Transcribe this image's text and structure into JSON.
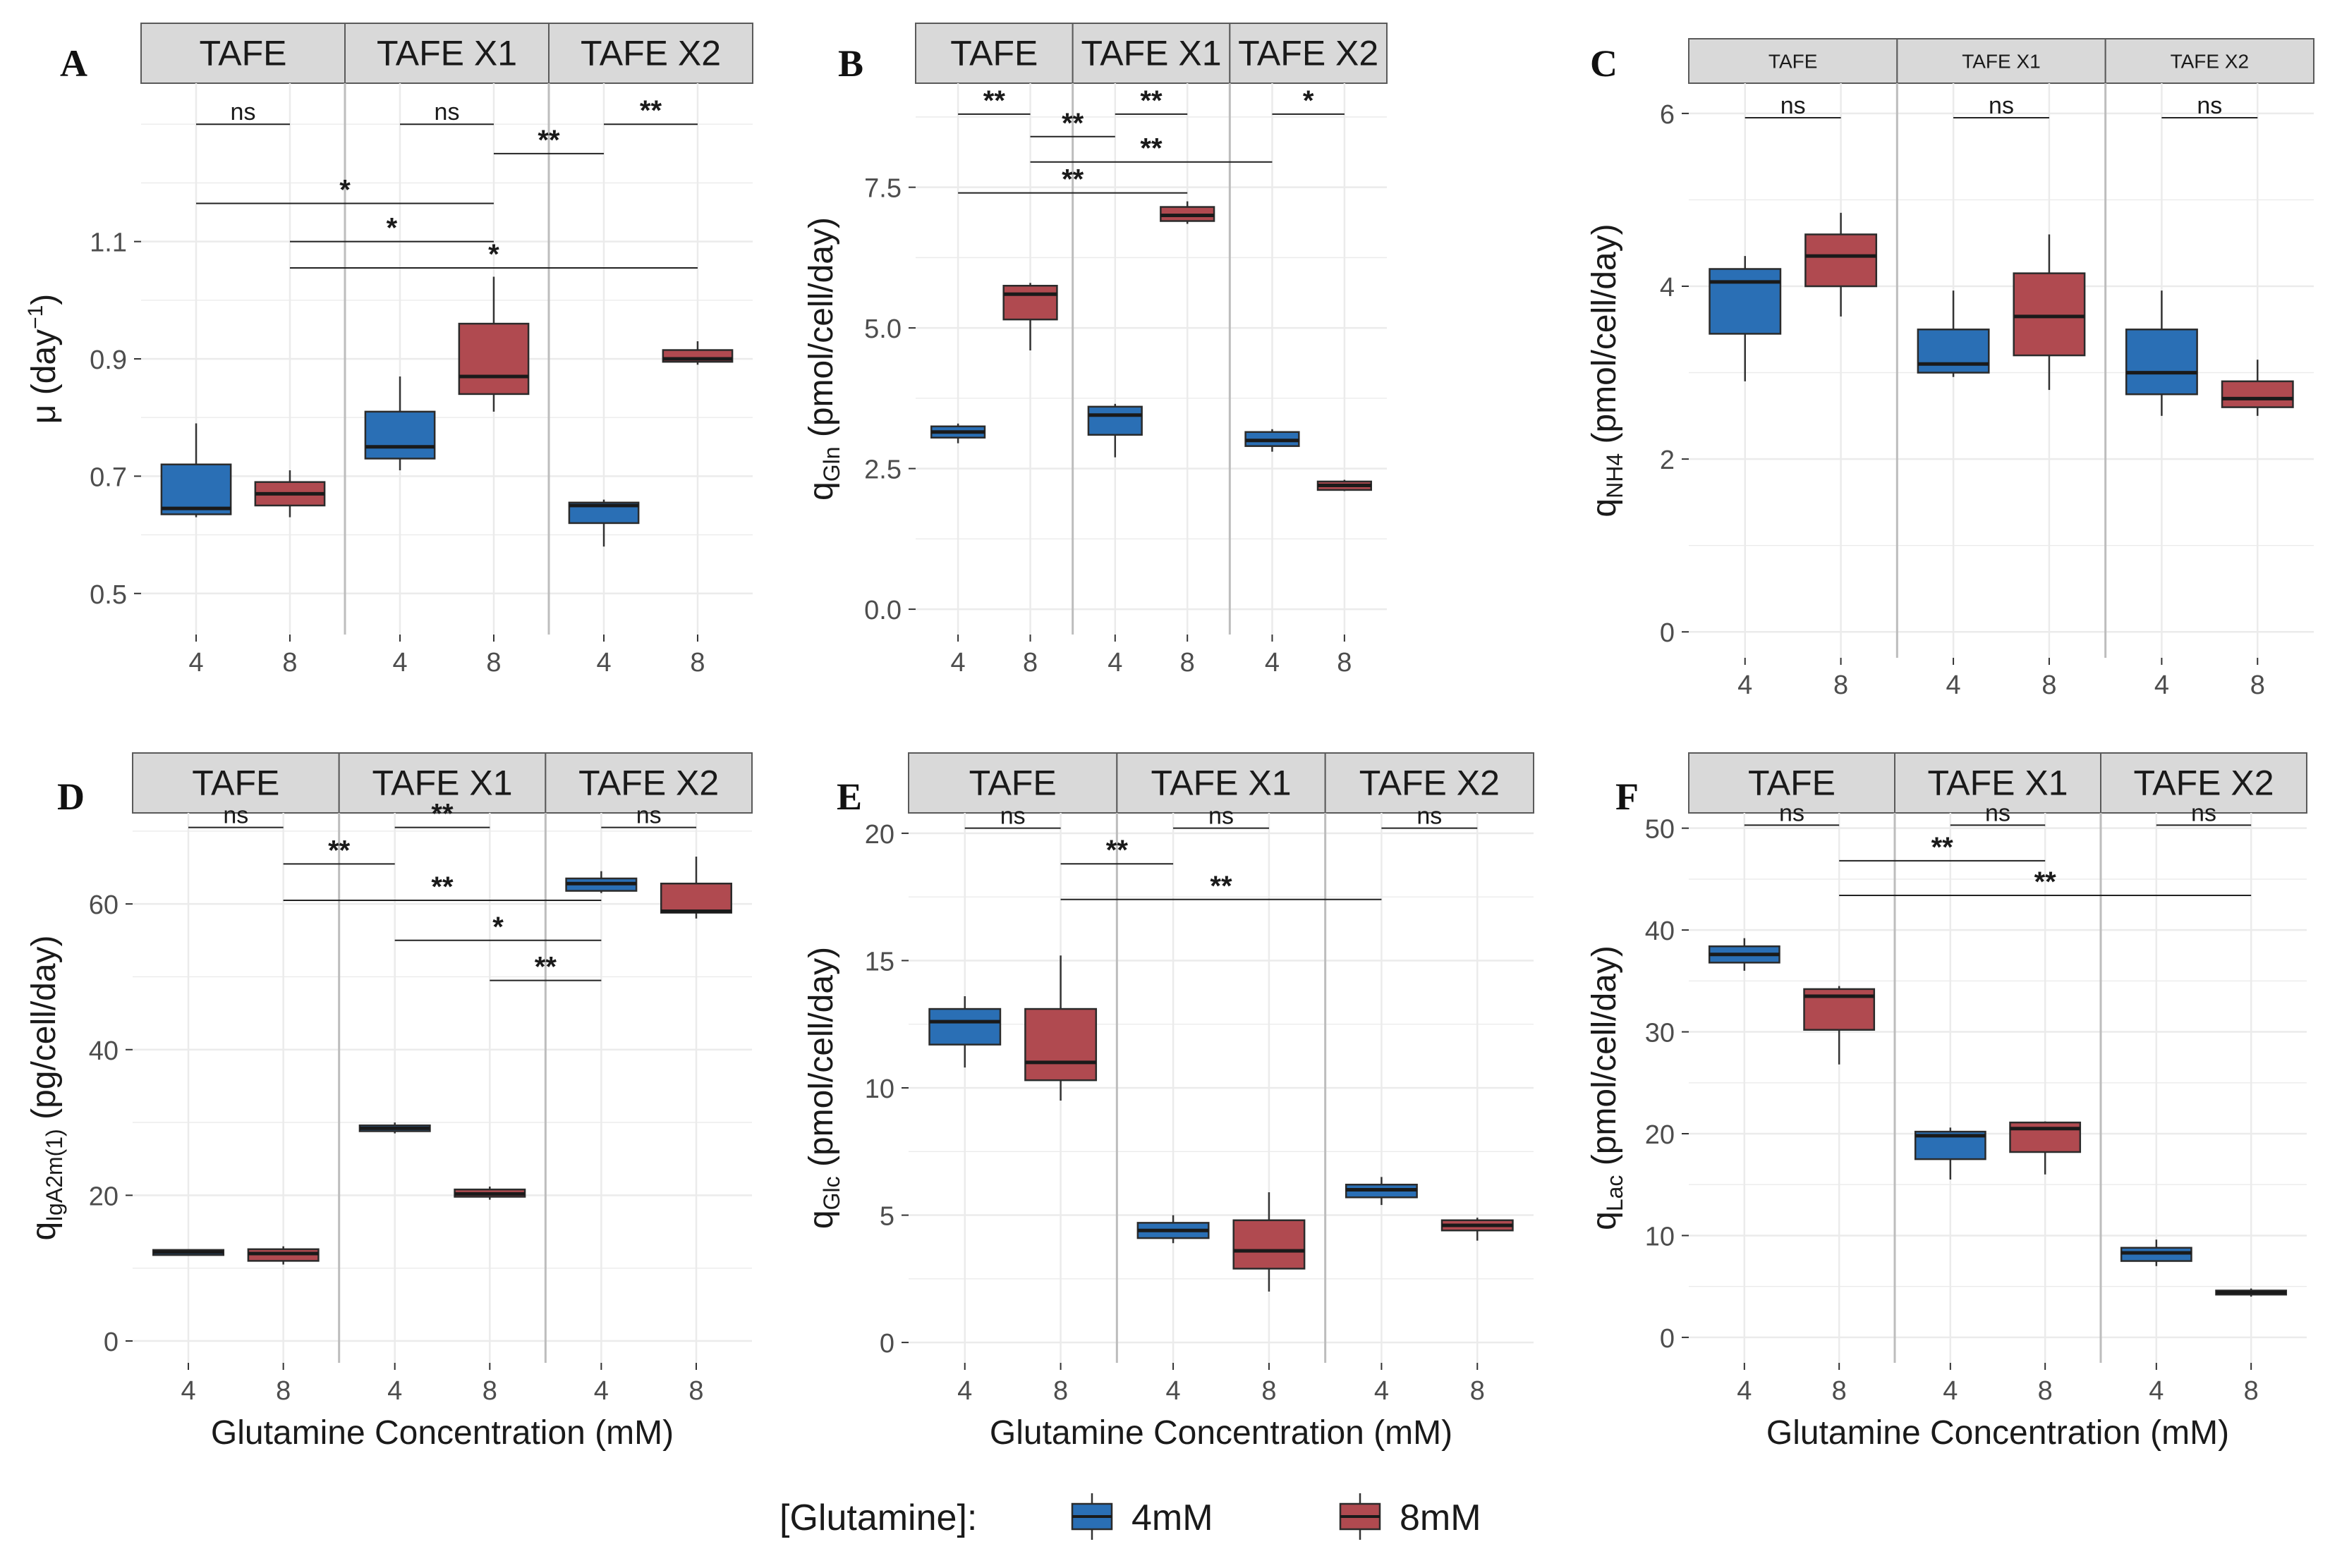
{
  "figure": {
    "colors": {
      "4mM": "#2a6fb5",
      "8mM": "#b04a50",
      "strip_bg": "#d9d9d9",
      "grid": "#ebebeb",
      "panel_divider": "#bdbdbd"
    },
    "legend": {
      "title": "[Glutamine]:",
      "items": [
        {
          "label": "4mM",
          "color": "#2a6fb5"
        },
        {
          "label": "8mM",
          "color": "#b04a50"
        }
      ]
    },
    "xlabel": "Glutamine Concentration (mM)"
  },
  "chart_data": [
    {
      "panel": "A",
      "type": "boxplot",
      "ylabel": {
        "main": "μ (day",
        "sup": "−1",
        "tail": ")"
      },
      "ylim": [
        0.43,
        1.37
      ],
      "yticks": [
        0.5,
        0.7,
        0.9,
        1.1
      ],
      "facets": [
        "TAFE",
        "TAFE X1",
        "TAFE X2"
      ],
      "xticks": [
        "4",
        "8"
      ],
      "boxes": [
        {
          "facet": 0,
          "group": "4mM",
          "min": 0.63,
          "q1": 0.635,
          "median": 0.645,
          "q3": 0.72,
          "max": 0.79
        },
        {
          "facet": 0,
          "group": "8mM",
          "min": 0.63,
          "q1": 0.65,
          "median": 0.67,
          "q3": 0.69,
          "max": 0.71
        },
        {
          "facet": 1,
          "group": "4mM",
          "min": 0.71,
          "q1": 0.73,
          "median": 0.75,
          "q3": 0.81,
          "max": 0.87
        },
        {
          "facet": 1,
          "group": "8mM",
          "min": 0.81,
          "q1": 0.84,
          "median": 0.87,
          "q3": 0.96,
          "max": 1.04
        },
        {
          "facet": 2,
          "group": "4mM",
          "min": 0.58,
          "q1": 0.62,
          "median": 0.65,
          "q3": 0.655,
          "max": 0.66
        },
        {
          "facet": 2,
          "group": "8mM",
          "min": 0.89,
          "q1": 0.895,
          "median": 0.9,
          "q3": 0.915,
          "max": 0.93
        }
      ],
      "brackets": [
        {
          "from": [
            0,
            "4mM"
          ],
          "to": [
            0,
            "8mM"
          ],
          "y": 1.3,
          "label": "ns"
        },
        {
          "from": [
            1,
            "4mM"
          ],
          "to": [
            1,
            "8mM"
          ],
          "y": 1.3,
          "label": "ns"
        },
        {
          "from": [
            1,
            "8mM"
          ],
          "to": [
            2,
            "4mM"
          ],
          "y": 1.25,
          "label": "**"
        },
        {
          "from": [
            2,
            "4mM"
          ],
          "to": [
            2,
            "8mM"
          ],
          "y": 1.3,
          "label": "**"
        },
        {
          "from": [
            0,
            "4mM"
          ],
          "to": [
            1,
            "8mM"
          ],
          "y": 1.165,
          "label": "*"
        },
        {
          "from": [
            0,
            "8mM"
          ],
          "to": [
            1,
            "8mM"
          ],
          "y": 1.1,
          "label": "*"
        },
        {
          "from": [
            0,
            "8mM"
          ],
          "to": [
            2,
            "8mM"
          ],
          "y": 1.055,
          "label": "*"
        }
      ]
    },
    {
      "panel": "B",
      "type": "boxplot",
      "ylabel": {
        "main": "q",
        "sub": "Gln",
        "tail": " (pmol/cell/day)"
      },
      "ylim": [
        -0.45,
        9.35
      ],
      "yticks": [
        0.0,
        2.5,
        5.0,
        7.5
      ],
      "ytick_labels": [
        "0.0",
        "2.5",
        "5.0",
        "7.5"
      ],
      "facets": [
        "TAFE",
        "TAFE X1",
        "TAFE X2"
      ],
      "xticks": [
        "4",
        "8"
      ],
      "boxes": [
        {
          "facet": 0,
          "group": "4mM",
          "min": 2.95,
          "q1": 3.05,
          "median": 3.15,
          "q3": 3.25,
          "max": 3.3
        },
        {
          "facet": 0,
          "group": "8mM",
          "min": 4.6,
          "q1": 5.15,
          "median": 5.6,
          "q3": 5.75,
          "max": 5.8
        },
        {
          "facet": 1,
          "group": "4mM",
          "min": 2.7,
          "q1": 3.1,
          "median": 3.45,
          "q3": 3.6,
          "max": 3.65
        },
        {
          "facet": 1,
          "group": "8mM",
          "min": 6.85,
          "q1": 6.9,
          "median": 7.0,
          "q3": 7.15,
          "max": 7.25
        },
        {
          "facet": 2,
          "group": "4mM",
          "min": 2.8,
          "q1": 2.9,
          "median": 3.0,
          "q3": 3.15,
          "max": 3.2
        },
        {
          "facet": 2,
          "group": "8mM",
          "min": 2.1,
          "q1": 2.12,
          "median": 2.2,
          "q3": 2.27,
          "max": 2.3
        }
      ],
      "brackets": [
        {
          "from": [
            0,
            "4mM"
          ],
          "to": [
            0,
            "8mM"
          ],
          "y": 8.8,
          "label": "**"
        },
        {
          "from": [
            1,
            "4mM"
          ],
          "to": [
            1,
            "8mM"
          ],
          "y": 8.8,
          "label": "**"
        },
        {
          "from": [
            2,
            "4mM"
          ],
          "to": [
            2,
            "8mM"
          ],
          "y": 8.8,
          "label": "*"
        },
        {
          "from": [
            0,
            "8mM"
          ],
          "to": [
            1,
            "4mM"
          ],
          "y": 8.4,
          "label": "**"
        },
        {
          "from": [
            0,
            "8mM"
          ],
          "to": [
            2,
            "4mM"
          ],
          "y": 7.95,
          "label": "**"
        },
        {
          "from": [
            0,
            "4mM"
          ],
          "to": [
            1,
            "8mM"
          ],
          "y": 7.4,
          "label": "**"
        }
      ]
    },
    {
      "panel": "C",
      "type": "boxplot",
      "ylabel": {
        "main": "q",
        "sub": "NH4",
        "tail": " (pmol/cell/day)"
      },
      "ylim": [
        -0.3,
        6.35
      ],
      "yticks": [
        0,
        2,
        4,
        6
      ],
      "small_strip": true,
      "facets": [
        "TAFE",
        "TAFE X1",
        "TAFE X2"
      ],
      "xticks": [
        "4",
        "8"
      ],
      "boxes": [
        {
          "facet": 0,
          "group": "4mM",
          "min": 2.9,
          "q1": 3.45,
          "median": 4.05,
          "q3": 4.2,
          "max": 4.35
        },
        {
          "facet": 0,
          "group": "8mM",
          "min": 3.65,
          "q1": 4.0,
          "median": 4.35,
          "q3": 4.6,
          "max": 4.85
        },
        {
          "facet": 1,
          "group": "4mM",
          "min": 2.95,
          "q1": 3.0,
          "median": 3.1,
          "q3": 3.5,
          "max": 3.95
        },
        {
          "facet": 1,
          "group": "8mM",
          "min": 2.8,
          "q1": 3.2,
          "median": 3.65,
          "q3": 4.15,
          "max": 4.6
        },
        {
          "facet": 2,
          "group": "4mM",
          "min": 2.5,
          "q1": 2.75,
          "median": 3.0,
          "q3": 3.5,
          "max": 3.95
        },
        {
          "facet": 2,
          "group": "8mM",
          "min": 2.5,
          "q1": 2.6,
          "median": 2.7,
          "q3": 2.9,
          "max": 3.15
        }
      ],
      "brackets": [
        {
          "from": [
            0,
            "4mM"
          ],
          "to": [
            0,
            "8mM"
          ],
          "y": 5.95,
          "label": "ns"
        },
        {
          "from": [
            1,
            "4mM"
          ],
          "to": [
            1,
            "8mM"
          ],
          "y": 5.95,
          "label": "ns"
        },
        {
          "from": [
            2,
            "4mM"
          ],
          "to": [
            2,
            "8mM"
          ],
          "y": 5.95,
          "label": "ns"
        }
      ]
    },
    {
      "panel": "D",
      "type": "boxplot",
      "ylabel": {
        "main": "q",
        "sub": "IgA2m(1)",
        "tail": " (pg/cell/day)"
      },
      "ylim": [
        -3,
        72.5
      ],
      "yticks": [
        0,
        20,
        40,
        60
      ],
      "facets": [
        "TAFE",
        "TAFE X1",
        "TAFE X2"
      ],
      "xticks": [
        "4",
        "8"
      ],
      "boxes": [
        {
          "facet": 0,
          "group": "4mM",
          "min": 11.8,
          "q1": 11.8,
          "median": 12.2,
          "q3": 12.5,
          "max": 12.5
        },
        {
          "facet": 0,
          "group": "8mM",
          "min": 10.5,
          "q1": 11.0,
          "median": 12.0,
          "q3": 12.6,
          "max": 13.0
        },
        {
          "facet": 1,
          "group": "4mM",
          "min": 28.5,
          "q1": 28.8,
          "median": 29.2,
          "q3": 29.6,
          "max": 30.0
        },
        {
          "facet": 1,
          "group": "8mM",
          "min": 19.4,
          "q1": 19.8,
          "median": 20.2,
          "q3": 20.8,
          "max": 21.2
        },
        {
          "facet": 2,
          "group": "4mM",
          "min": 61.5,
          "q1": 61.8,
          "median": 62.8,
          "q3": 63.5,
          "max": 64.5
        },
        {
          "facet": 2,
          "group": "8mM",
          "min": 58.0,
          "q1": 58.8,
          "median": 59.0,
          "q3": 62.8,
          "max": 66.5
        }
      ],
      "brackets": [
        {
          "from": [
            0,
            "4mM"
          ],
          "to": [
            0,
            "8mM"
          ],
          "y": 70.5,
          "label": "ns"
        },
        {
          "from": [
            1,
            "4mM"
          ],
          "to": [
            1,
            "8mM"
          ],
          "y": 70.5,
          "label": "**"
        },
        {
          "from": [
            2,
            "4mM"
          ],
          "to": [
            2,
            "8mM"
          ],
          "y": 70.5,
          "label": "ns"
        },
        {
          "from": [
            0,
            "8mM"
          ],
          "to": [
            1,
            "4mM"
          ],
          "y": 65.5,
          "label": "**"
        },
        {
          "from": [
            0,
            "8mM"
          ],
          "to": [
            2,
            "4mM"
          ],
          "y": 60.5,
          "label": "**"
        },
        {
          "from": [
            1,
            "4mM"
          ],
          "to": [
            2,
            "4mM"
          ],
          "y": 55.0,
          "label": "*"
        },
        {
          "from": [
            1,
            "8mM"
          ],
          "to": [
            2,
            "4mM"
          ],
          "y": 49.5,
          "label": "**"
        }
      ]
    },
    {
      "panel": "E",
      "type": "boxplot",
      "ylabel": {
        "main": "q",
        "sub": "Glc",
        "tail": " (pmol/cell/day)"
      },
      "ylim": [
        -0.8,
        20.8
      ],
      "yticks": [
        0,
        5,
        10,
        15,
        20
      ],
      "facets": [
        "TAFE",
        "TAFE X1",
        "TAFE X2"
      ],
      "xticks": [
        "4",
        "8"
      ],
      "boxes": [
        {
          "facet": 0,
          "group": "4mM",
          "min": 10.8,
          "q1": 11.7,
          "median": 12.6,
          "q3": 13.1,
          "max": 13.6
        },
        {
          "facet": 0,
          "group": "8mM",
          "min": 9.5,
          "q1": 10.3,
          "median": 11.0,
          "q3": 13.1,
          "max": 15.2
        },
        {
          "facet": 1,
          "group": "4mM",
          "min": 3.9,
          "q1": 4.1,
          "median": 4.4,
          "q3": 4.7,
          "max": 5.0
        },
        {
          "facet": 1,
          "group": "8mM",
          "min": 2.0,
          "q1": 2.9,
          "median": 3.6,
          "q3": 4.8,
          "max": 5.9
        },
        {
          "facet": 2,
          "group": "4mM",
          "min": 5.4,
          "q1": 5.7,
          "median": 6.0,
          "q3": 6.2,
          "max": 6.5
        },
        {
          "facet": 2,
          "group": "8mM",
          "min": 4.0,
          "q1": 4.4,
          "median": 4.6,
          "q3": 4.8,
          "max": 4.9
        }
      ],
      "brackets": [
        {
          "from": [
            0,
            "4mM"
          ],
          "to": [
            0,
            "8mM"
          ],
          "y": 20.2,
          "label": "ns"
        },
        {
          "from": [
            1,
            "4mM"
          ],
          "to": [
            1,
            "8mM"
          ],
          "y": 20.2,
          "label": "ns"
        },
        {
          "from": [
            2,
            "4mM"
          ],
          "to": [
            2,
            "8mM"
          ],
          "y": 20.2,
          "label": "ns"
        },
        {
          "from": [
            0,
            "8mM"
          ],
          "to": [
            1,
            "4mM"
          ],
          "y": 18.8,
          "label": "**"
        },
        {
          "from": [
            0,
            "8mM"
          ],
          "to": [
            2,
            "4mM"
          ],
          "y": 17.4,
          "label": "**"
        }
      ]
    },
    {
      "panel": "F",
      "type": "boxplot",
      "ylabel": {
        "main": "q",
        "sub": "Lac",
        "tail": " (pmol/cell/day)"
      },
      "ylim": [
        -2.5,
        51.5
      ],
      "yticks": [
        0,
        10,
        20,
        30,
        40,
        50
      ],
      "facets": [
        "TAFE",
        "TAFE X1",
        "TAFE X2"
      ],
      "xticks": [
        "4",
        "8"
      ],
      "boxes": [
        {
          "facet": 0,
          "group": "4mM",
          "min": 36.0,
          "q1": 36.8,
          "median": 37.6,
          "q3": 38.4,
          "max": 39.2
        },
        {
          "facet": 0,
          "group": "8mM",
          "min": 26.8,
          "q1": 30.2,
          "median": 33.5,
          "q3": 34.2,
          "max": 34.5
        },
        {
          "facet": 1,
          "group": "4mM",
          "min": 15.5,
          "q1": 17.5,
          "median": 19.8,
          "q3": 20.2,
          "max": 20.6
        },
        {
          "facet": 1,
          "group": "8mM",
          "min": 16.0,
          "q1": 18.2,
          "median": 20.5,
          "q3": 21.1,
          "max": 21.2
        },
        {
          "facet": 2,
          "group": "4mM",
          "min": 7.0,
          "q1": 7.5,
          "median": 8.3,
          "q3": 8.8,
          "max": 9.6
        },
        {
          "facet": 2,
          "group": "8mM",
          "min": 4.0,
          "q1": 4.2,
          "median": 4.4,
          "q3": 4.6,
          "max": 4.8
        }
      ],
      "brackets": [
        {
          "from": [
            0,
            "4mM"
          ],
          "to": [
            0,
            "8mM"
          ],
          "y": 50.3,
          "label": "ns"
        },
        {
          "from": [
            1,
            "4mM"
          ],
          "to": [
            1,
            "8mM"
          ],
          "y": 50.3,
          "label": "ns"
        },
        {
          "from": [
            2,
            "4mM"
          ],
          "to": [
            2,
            "8mM"
          ],
          "y": 50.3,
          "label": "ns"
        },
        {
          "from": [
            0,
            "8mM"
          ],
          "to": [
            1,
            "8mM"
          ],
          "y": 46.8,
          "label": "**"
        },
        {
          "from": [
            0,
            "8mM"
          ],
          "to": [
            2,
            "8mM"
          ],
          "y": 43.4,
          "label": "**"
        }
      ]
    }
  ]
}
